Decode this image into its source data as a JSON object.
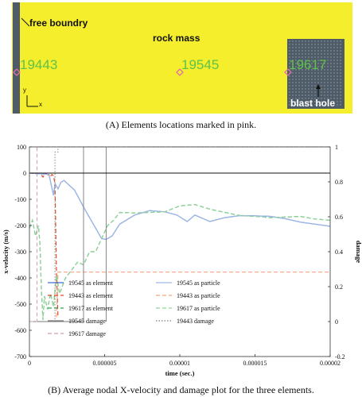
{
  "panel_a": {
    "labels": {
      "free_boundary": "free boundry",
      "rock_mass": "rock mass",
      "blast_hole": "blast hole",
      "axis_y": "y",
      "axis_x": "x"
    },
    "element_ids": [
      "19443",
      "19545",
      "19617"
    ],
    "colors": {
      "rock": "#f5ee2c",
      "element_id_text": "#5ec24a",
      "blast_hole": "#4f5c67",
      "marker": "#e06fa8"
    },
    "caption": "(A)  Elements locations marked in pink."
  },
  "panel_b": {
    "caption": "(B)  Average nodal X-velocity and damage plot for the three elements."
  },
  "chart_data": {
    "type": "line",
    "xlabel": "time (sec.)",
    "ylabel": "x-velocity (m/s)",
    "y2label": "damage",
    "xlim": [
      0,
      2e-05
    ],
    "ylim": [
      -700,
      100
    ],
    "y2lim": [
      -0.2,
      1
    ],
    "x_ticks": [
      "0",
      "0.000005",
      "0.00001",
      "0.000015",
      "0.00002"
    ],
    "y_ticks": [
      "100",
      "0",
      "-100",
      "-200",
      "-300",
      "-400",
      "-500",
      "-600",
      "-700"
    ],
    "y2_ticks": [
      "1",
      "0.8",
      "0.6",
      "0.4",
      "0.2",
      "0",
      "-0.2"
    ],
    "legend_position": "lower-center",
    "series": [
      {
        "name": "19545 as element",
        "axis": "left",
        "color": "#3f6fd0",
        "dash": "solid",
        "x": [
          0,
          1.3e-06,
          1.6e-06,
          1.7e-06,
          1.9e-06,
          2.1e-06,
          2.3e-06,
          3e-06,
          3.7e-06,
          4.4e-06,
          4.8e-06,
          5.1e-06,
          5.5e-06,
          6e-06,
          7e-06,
          8e-06,
          9e-06,
          9.8e-06,
          1.05e-05,
          1.1e-05,
          1.2e-05,
          1.3e-05,
          1.4e-05,
          1.5e-05,
          1.6e-05,
          1.7e-05,
          1.8e-05,
          1.9e-05,
          2e-05
        ],
        "y": [
          0,
          -5,
          -85,
          -40,
          -60,
          -35,
          -28,
          -65,
          -140,
          -210,
          -250,
          -253,
          -240,
          -195,
          -160,
          -143,
          -148,
          -160,
          -185,
          -160,
          -185,
          -170,
          -162,
          -163,
          -165,
          -174,
          -187,
          -195,
          -203
        ]
      },
      {
        "name": "19443 as element",
        "axis": "left",
        "color": "#e04a2a",
        "dash": "dashed",
        "x": [
          0,
          6e-07,
          8e-07,
          9e-07,
          1.05e-06,
          1.2e-06,
          1.4e-06,
          1.5e-06,
          1.6e-06,
          1.7e-06,
          1.8e-06,
          1.9e-06
        ],
        "y": [
          0,
          0,
          -8,
          -15,
          -2,
          -5,
          -12,
          -5,
          -10,
          -40,
          -380,
          -550
        ]
      },
      {
        "name": "19617 as element",
        "axis": "left",
        "color": "#2fa24a",
        "dash": "dashed",
        "x": [
          0,
          2e-07,
          4e-07,
          6e-07,
          7e-07,
          8e-07,
          9e-07,
          1e-06,
          1.2e-06,
          1.4e-06,
          1.6e-06,
          1.8e-06,
          2e-06,
          2.4e-06,
          2.8e-06,
          3.2e-06,
          3.6e-06,
          4e-06,
          4.4e-06,
          4.8e-06,
          5.2e-06,
          5.6e-06,
          6e-06,
          7e-06,
          8e-06,
          9e-06,
          1e-05,
          1.1e-05,
          1.2e-05,
          1.3e-05,
          1.4e-05,
          1.5e-05,
          1.6e-05,
          1.7e-05,
          1.8e-05,
          1.9e-05,
          2e-05
        ],
        "y": [
          -210,
          -180,
          -240,
          -200,
          -270,
          -450,
          -560,
          -470,
          -520,
          -460,
          -510,
          -390,
          -460,
          -400,
          -370,
          -340,
          -350,
          -300,
          -300,
          -250,
          -200,
          -180,
          -150,
          -152,
          -150,
          -148,
          -125,
          -120,
          -138,
          -150,
          -162,
          -165,
          -170,
          -168,
          -165,
          -175,
          -180
        ]
      },
      {
        "name": "19545 as particle",
        "axis": "left",
        "color": "#9fb8e6",
        "dash": "solid",
        "x": [
          0,
          1.3e-06,
          1.6e-06,
          1.7e-06,
          1.9e-06,
          2.1e-06,
          2.3e-06,
          3e-06,
          3.7e-06,
          4.4e-06,
          4.8e-06,
          5.1e-06,
          5.5e-06,
          6e-06,
          7e-06,
          8e-06,
          9e-06,
          9.8e-06,
          1.05e-05,
          1.1e-05,
          1.2e-05,
          1.3e-05,
          1.4e-05,
          1.5e-05,
          1.6e-05,
          1.7e-05,
          1.8e-05,
          1.9e-05,
          2e-05
        ],
        "y": [
          0,
          -5,
          -85,
          -40,
          -60,
          -35,
          -28,
          -65,
          -140,
          -210,
          -250,
          -253,
          -240,
          -195,
          -160,
          -143,
          -148,
          -160,
          -185,
          -160,
          -185,
          -170,
          -162,
          -163,
          -165,
          -174,
          -187,
          -195,
          -203
        ]
      },
      {
        "name": "19443 as particle",
        "axis": "left",
        "color": "#f3a37a",
        "dash": "dashed",
        "x": [
          1.8e-06,
          1.9e-06,
          2e-05
        ],
        "y": [
          -550,
          -378,
          -378
        ]
      },
      {
        "name": "19617 as particle",
        "axis": "left",
        "color": "#8fd49a",
        "dash": "dashed",
        "x": [
          0,
          2e-07,
          4e-07,
          6e-07,
          7e-07,
          8e-07,
          9e-07,
          1e-06,
          1.2e-06,
          1.4e-06,
          1.6e-06,
          1.8e-06,
          2e-06,
          2.4e-06,
          2.8e-06,
          3.2e-06,
          3.6e-06,
          4e-06,
          4.4e-06,
          4.8e-06,
          5.2e-06,
          5.6e-06,
          6e-06,
          7e-06,
          8e-06,
          9e-06,
          1e-05,
          1.1e-05,
          1.2e-05,
          1.3e-05,
          1.4e-05,
          1.5e-05,
          1.6e-05,
          1.7e-05,
          1.8e-05,
          1.9e-05,
          2e-05
        ],
        "y": [
          -210,
          -180,
          -240,
          -200,
          -270,
          -450,
          -560,
          -470,
          -520,
          -460,
          -510,
          -390,
          -460,
          -400,
          -370,
          -340,
          -350,
          -300,
          -300,
          -250,
          -200,
          -180,
          -150,
          -152,
          -150,
          -148,
          -125,
          -120,
          -138,
          -150,
          -162,
          -165,
          -170,
          -168,
          -165,
          -175,
          -180
        ]
      },
      {
        "name": "19545 damage",
        "axis": "right",
        "color": "#7a7a7a",
        "dash": "solid",
        "x": [
          0,
          3.6e-06,
          3.6e-06,
          5.1e-06,
          5.1e-06
        ],
        "y": [
          0,
          0,
          1,
          1,
          0
        ]
      },
      {
        "name": "19443 damage",
        "axis": "right",
        "color": "#7a7a7a",
        "dash": "dotted",
        "x": [
          0,
          1.7e-06,
          1.7e-06,
          1.9e-06,
          1.9e-06,
          2e-05
        ],
        "y": [
          0,
          0,
          0.97,
          0.97,
          1,
          1
        ]
      },
      {
        "name": "19617 damage",
        "axis": "right",
        "color": "#c8a0a8",
        "dash": "dashed",
        "x": [
          0,
          5e-07,
          5e-07,
          1.2e-06,
          1.2e-06,
          2e-05
        ],
        "y": [
          0,
          0,
          1,
          1,
          1,
          1
        ]
      }
    ]
  }
}
